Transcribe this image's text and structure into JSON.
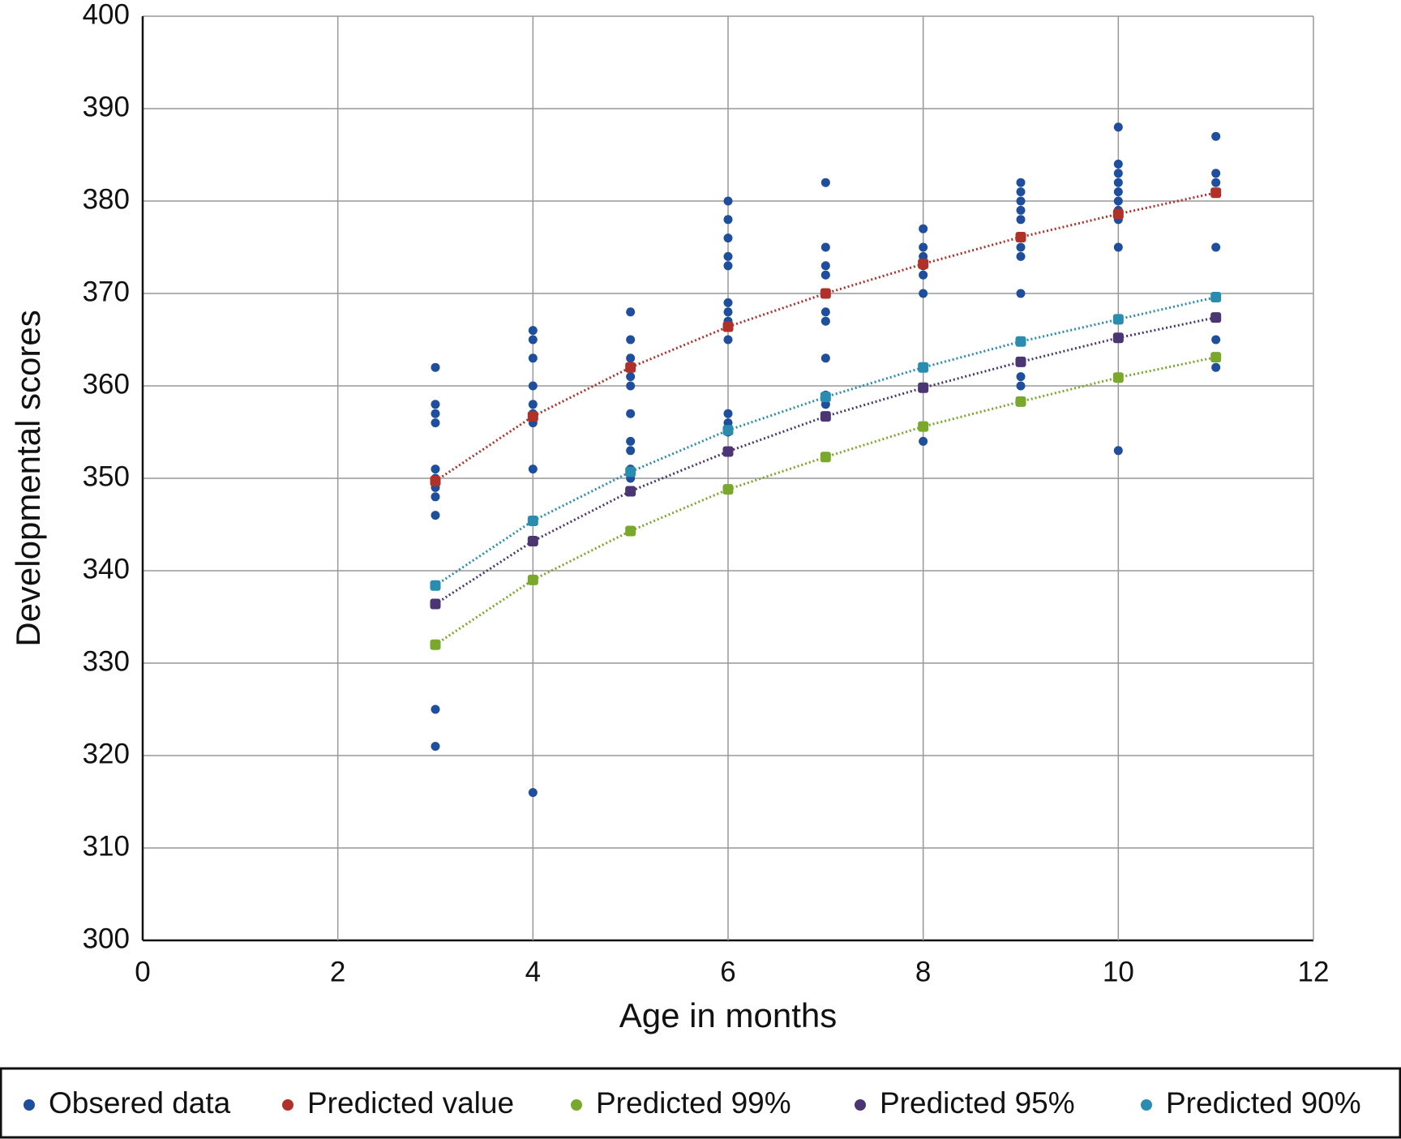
{
  "chart_data": {
    "type": "scatter",
    "x_label": "Age in months",
    "y_label": "Developmental scores",
    "xlim": [
      0,
      12
    ],
    "xticks": [
      0,
      2,
      4,
      6,
      8,
      10,
      12
    ],
    "ylim": [
      300,
      400
    ],
    "yticks": [
      300,
      310,
      320,
      330,
      340,
      350,
      360,
      370,
      380,
      390,
      400
    ],
    "grid": true,
    "legend": "bottom",
    "series": [
      {
        "name": "Obsered data",
        "color": "#1f4e9c",
        "line": false,
        "x": [
          3,
          3,
          3,
          3,
          3,
          3,
          3,
          3,
          3,
          3,
          3,
          4,
          4,
          4,
          4,
          4,
          4,
          4,
          4,
          4,
          5,
          5,
          5,
          5,
          5,
          5,
          5,
          5,
          5,
          5,
          5,
          6,
          6,
          6,
          6,
          6,
          6,
          6,
          6,
          6,
          6,
          6,
          6,
          7,
          7,
          7,
          7,
          7,
          7,
          7,
          7,
          7,
          7,
          8,
          8,
          8,
          8,
          8,
          8,
          8,
          9,
          9,
          9,
          9,
          9,
          9,
          9,
          9,
          9,
          9,
          9,
          10,
          10,
          10,
          10,
          10,
          10,
          10,
          10,
          10,
          10,
          11,
          11,
          11,
          11,
          11,
          11
        ],
        "values": [
          362,
          358,
          357,
          356,
          351,
          350,
          349,
          348,
          346,
          325,
          321,
          366,
          365,
          363,
          360,
          358,
          357,
          356,
          351,
          316,
          368,
          365,
          363,
          362,
          361,
          360,
          357,
          354,
          353,
          351,
          350,
          380,
          378,
          376,
          374,
          373,
          369,
          368,
          367,
          365,
          357,
          356,
          355,
          382,
          375,
          373,
          372,
          370,
          368,
          367,
          363,
          359,
          358,
          377,
          375,
          374,
          373,
          372,
          370,
          354,
          382,
          381,
          380,
          379,
          378,
          376,
          375,
          374,
          370,
          361,
          360,
          388,
          384,
          383,
          382,
          381,
          380,
          379,
          378,
          375,
          353,
          387,
          383,
          382,
          375,
          365,
          362
        ]
      },
      {
        "name": "Predicted value",
        "color": "#b0302a",
        "line": true,
        "x": [
          3,
          4,
          5,
          6,
          7,
          8,
          9,
          10,
          11
        ],
        "values": [
          349.7,
          356.7,
          362,
          366.4,
          370,
          373.2,
          376.1,
          378.6,
          380.9
        ]
      },
      {
        "name": "Predicted 99%",
        "color": "#7aa82c",
        "line": true,
        "x": [
          3,
          4,
          5,
          6,
          7,
          8,
          9,
          10,
          11
        ],
        "values": [
          332,
          339,
          344.3,
          348.8,
          352.3,
          355.6,
          358.3,
          360.9,
          363.1
        ]
      },
      {
        "name": "Predicted 95%",
        "color": "#4b3573",
        "line": true,
        "x": [
          3,
          4,
          5,
          6,
          7,
          8,
          9,
          10,
          11
        ],
        "values": [
          336.4,
          343.2,
          348.6,
          352.9,
          356.7,
          359.8,
          362.6,
          365.2,
          367.4
        ]
      },
      {
        "name": "Predicted 90%",
        "color": "#2a8db0",
        "line": true,
        "x": [
          3,
          4,
          5,
          6,
          7,
          8,
          9,
          10,
          11
        ],
        "values": [
          338.4,
          345.4,
          350.7,
          355.2,
          358.8,
          362,
          364.8,
          367.2,
          369.6
        ]
      }
    ]
  }
}
